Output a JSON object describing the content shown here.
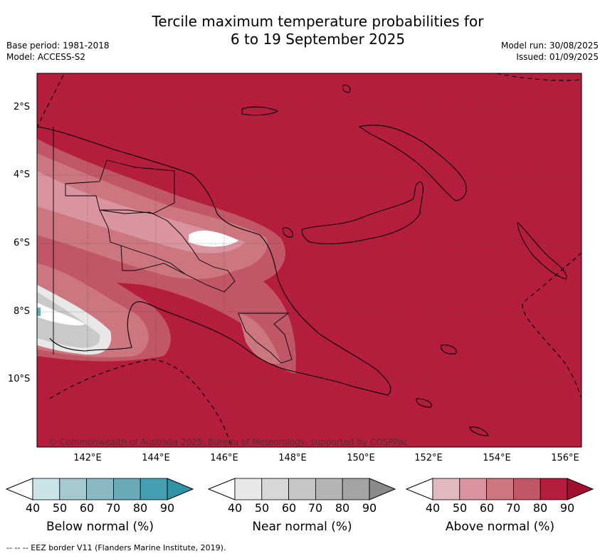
{
  "title": {
    "line1": "Tercile maximum temperature probabilities for",
    "line2": "6 to 19 September 2025"
  },
  "meta_left": {
    "base_period": "Base period: 1981-2018",
    "model": "Model: ACCESS-S2"
  },
  "meta_right": {
    "model_run": "Model run: 30/08/2025",
    "issued": "Issued: 01/09/2025"
  },
  "credit": "© Commonwealth of Australia 2025, Bureau of Meteorology, supported by COSPPac",
  "lat_ticks": [
    "2°S",
    "4°S",
    "6°S",
    "8°S",
    "10°S"
  ],
  "lon_ticks": [
    "142°E",
    "144°E",
    "146°E",
    "148°E",
    "150°E",
    "152°E",
    "154°E",
    "156°E"
  ],
  "colorbars": [
    {
      "label": "Below normal (%)",
      "ticks": [
        "40",
        "50",
        "60",
        "70",
        "80",
        "90"
      ],
      "colors": [
        "#ffffff",
        "#c9e3e9",
        "#a6c8cf",
        "#8ab8c3",
        "#6aaab8",
        "#459fb2",
        "#2e94a6"
      ]
    },
    {
      "label": "Near normal (%)",
      "ticks": [
        "40",
        "50",
        "60",
        "70",
        "80",
        "90"
      ],
      "colors": [
        "#ffffff",
        "#e8e8e8",
        "#d7d7d7",
        "#c6c6c6",
        "#b4b4b4",
        "#a3a3a3",
        "#8a8a8a"
      ]
    },
    {
      "label": "Above normal (%)",
      "ticks": [
        "40",
        "50",
        "60",
        "70",
        "80",
        "90"
      ],
      "colors": [
        "#ffffff",
        "#e3b9c0",
        "#d9949f",
        "#cc7680",
        "#c15666",
        "#b41e3c",
        "#a3102f"
      ]
    }
  ],
  "footer": "-- -- -- EEZ border V11 (Flanders Marine Institute, 2019).",
  "colors": {
    "map_background": "#b41e3c"
  }
}
